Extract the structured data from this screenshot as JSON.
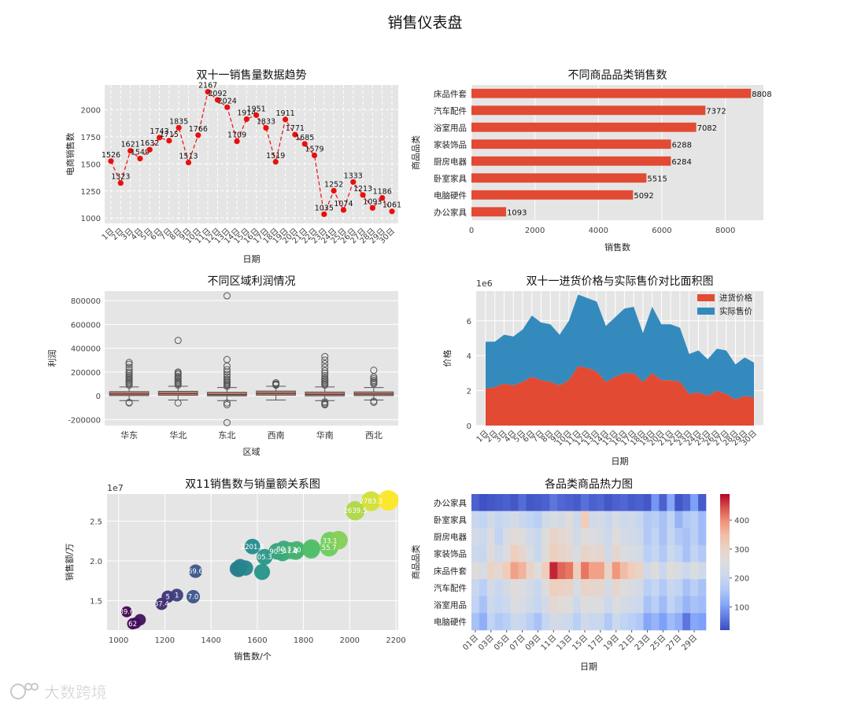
{
  "dashboard": {
    "title": "销售仪表盘",
    "watermark": "大数跨境"
  },
  "colors": {
    "plot_bg": "#e5e5e5",
    "grid": "#ffffff",
    "red": "#e24a33",
    "blue": "#348abd",
    "line_dot": "#e8100c"
  },
  "chart_data": [
    {
      "id": "trend",
      "type": "line",
      "title": "双十一销售量数据趋势",
      "xlabel": "日期",
      "ylabel": "电商销售数",
      "x": [
        "1日",
        "2日",
        "3日",
        "4日",
        "5日",
        "6日",
        "7日",
        "8日",
        "9日",
        "10日",
        "11日",
        "12日",
        "13日",
        "14日",
        "15日",
        "16日",
        "17日",
        "18日",
        "19日",
        "20日",
        "21日",
        "22日",
        "23日",
        "24日",
        "25日",
        "26日",
        "27日",
        "28日",
        "29日",
        "30日"
      ],
      "values": [
        1526,
        1323,
        1621,
        1549,
        1632,
        1743,
        1715,
        1835,
        1513,
        1766,
        2167,
        2092,
        2024,
        1709,
        1914,
        1951,
        1833,
        1519,
        1911,
        1771,
        1685,
        1579,
        1035,
        1252,
        1074,
        1333,
        1213,
        1093,
        1186,
        1061
      ],
      "yticks": [
        1000,
        1250,
        1500,
        1750,
        2000
      ],
      "ylim": [
        950,
        2230
      ],
      "grid": true,
      "data_labels": true
    },
    {
      "id": "category-bars",
      "type": "bar",
      "orientation": "horizontal",
      "title": "不同商品品类销售数",
      "xlabel": "销售数",
      "ylabel": "商品品类",
      "categories": [
        "床品件套",
        "汽车配件",
        "浴室用品",
        "家装饰品",
        "厨房电器",
        "卧室家具",
        "电脑硬件",
        "办公家具"
      ],
      "values": [
        8808,
        7372,
        7082,
        6288,
        6284,
        5515,
        5092,
        1093
      ],
      "xticks": [
        0,
        2000,
        4000,
        6000,
        8000
      ],
      "xlim": [
        0,
        9200
      ],
      "grid": true,
      "data_labels": true
    },
    {
      "id": "region-box",
      "type": "box",
      "title": "不同区域利润情况",
      "xlabel": "区域",
      "ylabel": "利润",
      "categories": [
        "华东",
        "华北",
        "东北",
        "西南",
        "华南",
        "西北"
      ],
      "boxes": [
        {
          "q1": 2000,
          "median": 15000,
          "q3": 35000,
          "whisker_low": -40000,
          "whisker_high": 75000,
          "outliers": [
            280000,
            265000,
            240000,
            220000,
            200000,
            185000,
            170000,
            160000,
            150000,
            140000,
            130000,
            120000,
            110000,
            100000,
            90000,
            -55000,
            -60000
          ]
        },
        {
          "q1": 4000,
          "median": 18000,
          "q3": 38000,
          "whisker_low": -35000,
          "whisker_high": 80000,
          "outliers": [
            465000,
            200000,
            190000,
            180000,
            165000,
            155000,
            145000,
            130000,
            120000,
            110000,
            100000,
            90000,
            -60000
          ]
        },
        {
          "q1": 0,
          "median": 10000,
          "q3": 30000,
          "whisker_low": -40000,
          "whisker_high": 70000,
          "outliers": [
            840000,
            305000,
            250000,
            220000,
            200000,
            180000,
            160000,
            140000,
            130000,
            120000,
            110000,
            100000,
            90000,
            80000,
            -60000,
            -75000,
            -225000
          ]
        },
        {
          "q1": 5000,
          "median": 20000,
          "q3": 40000,
          "whisker_low": -35000,
          "whisker_high": 80000,
          "outliers": [
            110000,
            100000,
            95000,
            90000
          ]
        },
        {
          "q1": 0,
          "median": 12000,
          "q3": 32000,
          "whisker_low": -40000,
          "whisker_high": 75000,
          "outliers": [
            330000,
            300000,
            270000,
            240000,
            210000,
            190000,
            170000,
            150000,
            140000,
            130000,
            120000,
            110000,
            100000,
            90000,
            -50000,
            -60000,
            -70000,
            -75000
          ]
        },
        {
          "q1": 2000,
          "median": 15000,
          "q3": 33000,
          "whisker_low": -35000,
          "whisker_high": 70000,
          "outliers": [
            215000,
            160000,
            145000,
            130000,
            120000,
            110000,
            100000,
            -45000,
            -55000
          ]
        }
      ],
      "yticks": [
        -200000,
        0,
        200000,
        400000,
        600000,
        800000
      ],
      "ylim": [
        -250000,
        880000
      ],
      "grid": true
    },
    {
      "id": "price-area",
      "type": "area",
      "title": "双十一进货价格与实际售价对比面积图",
      "xlabel": "日期",
      "ylabel": "价格",
      "scale_label": "1e6",
      "x": [
        "1日",
        "2日",
        "3日",
        "4日",
        "5日",
        "6日",
        "7日",
        "8日",
        "9日",
        "10日",
        "11日",
        "12日",
        "13日",
        "14日",
        "15日",
        "16日",
        "17日",
        "18日",
        "19日",
        "20日",
        "21日",
        "22日",
        "23日",
        "24日",
        "25日",
        "26日",
        "27日",
        "28日",
        "29日",
        "30日"
      ],
      "series": [
        {
          "name": "进货价格",
          "values": [
            2.1,
            2.2,
            2.4,
            2.3,
            2.5,
            2.8,
            2.6,
            2.5,
            2.3,
            2.6,
            3.4,
            3.3,
            3.1,
            2.5,
            2.8,
            3.0,
            3.0,
            2.5,
            3.0,
            2.6,
            2.6,
            2.5,
            1.8,
            1.9,
            1.7,
            2.0,
            1.8,
            1.5,
            1.7,
            1.6
          ]
        },
        {
          "name": "实际售价",
          "values": [
            2.7,
            2.6,
            2.8,
            2.8,
            3.0,
            3.5,
            3.3,
            3.3,
            2.9,
            3.4,
            4.1,
            4.0,
            4.0,
            3.2,
            3.4,
            3.7,
            3.8,
            2.8,
            3.8,
            3.2,
            3.2,
            3.1,
            2.3,
            2.4,
            2.1,
            2.4,
            2.5,
            2.0,
            2.2,
            2.0
          ]
        }
      ],
      "yticks": [
        0,
        2,
        4,
        6
      ],
      "ylim": [
        0,
        7.7
      ],
      "legend": "top-right",
      "grid": true
    },
    {
      "id": "sales-bubble",
      "type": "scatter",
      "title": "双11销售数与销量额关系图",
      "xlabel": "销售数/个",
      "ylabel": "销售额/万",
      "scale_label": "1e7",
      "points": [
        {
          "x": 1526,
          "y": 1.93,
          "label": ""
        },
        {
          "x": 1323,
          "y": 1.55,
          "label": "7.0"
        },
        {
          "x": 1621,
          "y": 1.86,
          "label": ""
        },
        {
          "x": 1549,
          "y": 1.91,
          "label": ""
        },
        {
          "x": 1632,
          "y": 2.05,
          "label": "05.3"
        },
        {
          "x": 1743,
          "y": 2.13,
          "label": "11.9"
        },
        {
          "x": 1715,
          "y": 2.15,
          "label": "80.3"
        },
        {
          "x": 1835,
          "y": 2.16,
          "label": ""
        },
        {
          "x": 1513,
          "y": 1.9,
          "label": ""
        },
        {
          "x": 1766,
          "y": 2.12,
          "label": "4"
        },
        {
          "x": 2167,
          "y": 2.76,
          "label": ""
        },
        {
          "x": 2092,
          "y": 2.75,
          "label": "2783.3"
        },
        {
          "x": 2024,
          "y": 2.63,
          "label": "2639.5"
        },
        {
          "x": 1709,
          "y": 2.1,
          "label": ""
        },
        {
          "x": 1914,
          "y": 2.25,
          "label": "33.1"
        },
        {
          "x": 1951,
          "y": 2.26,
          "label": ""
        },
        {
          "x": 1833,
          "y": 2.14,
          "label": ""
        },
        {
          "x": 1519,
          "y": 1.89,
          "label": ""
        },
        {
          "x": 1911,
          "y": 2.17,
          "label": "55.7"
        },
        {
          "x": 1771,
          "y": 2.14,
          "label": "20"
        },
        {
          "x": 1685,
          "y": 2.12,
          "label": "90.5"
        },
        {
          "x": 1579,
          "y": 2.18,
          "label": "2201.8"
        },
        {
          "x": 1035,
          "y": 1.36,
          "label": "39.6"
        },
        {
          "x": 1252,
          "y": 1.57,
          "label": "1"
        },
        {
          "x": 1074,
          "y": 1.22,
          "label": ""
        },
        {
          "x": 1333,
          "y": 1.87,
          "label": "69.6"
        },
        {
          "x": 1213,
          "y": 1.55,
          "label": "5"
        },
        {
          "x": 1093,
          "y": 1.26,
          "label": ""
        },
        {
          "x": 1186,
          "y": 1.46,
          "label": "37.4"
        },
        {
          "x": 1061,
          "y": 1.21,
          "label": "62"
        }
      ],
      "xticks": [
        1000,
        1200,
        1400,
        1600,
        1800,
        2000,
        2200
      ],
      "xlim": [
        950,
        2210
      ],
      "yticks": [
        1.5,
        2.0,
        2.5
      ],
      "ylim": [
        1.13,
        2.84
      ],
      "grid": true
    },
    {
      "id": "category-heatmap",
      "type": "heatmap",
      "title": "各品类商品热力图",
      "xlabel": "日期",
      "ylabel": "商品品类",
      "rows": [
        "办公家具",
        "卧室家具",
        "厨房电器",
        "家装饰品",
        "床品件套",
        "汽车配件",
        "浴室用品",
        "电脑硬件"
      ],
      "x": [
        "01日",
        "02日",
        "03日",
        "04日",
        "05日",
        "06日",
        "07日",
        "08日",
        "09日",
        "10日",
        "11日",
        "12日",
        "13日",
        "14日",
        "15日",
        "16日",
        "17日",
        "18日",
        "19日",
        "20日",
        "21日",
        "22日",
        "23日",
        "24日",
        "25日",
        "26日",
        "27日",
        "28日",
        "29日",
        "30日"
      ],
      "xtick_labels": [
        "01日",
        "03日",
        "05日",
        "07日",
        "09日",
        "11日",
        "13日",
        "15日",
        "17日",
        "19日",
        "21日",
        "23日",
        "25日",
        "27日",
        "29日"
      ],
      "values": [
        [
          40,
          25,
          30,
          35,
          40,
          30,
          50,
          30,
          35,
          40,
          60,
          45,
          40,
          35,
          55,
          40,
          45,
          30,
          40,
          45,
          35,
          40,
          30,
          90,
          40,
          110,
          30,
          45,
          100,
          35
        ],
        [
          200,
          180,
          220,
          190,
          210,
          230,
          200,
          180,
          170,
          220,
          240,
          230,
          260,
          210,
          330,
          220,
          230,
          200,
          240,
          210,
          220,
          190,
          160,
          170,
          150,
          180,
          130,
          160,
          170,
          140
        ],
        [
          230,
          210,
          250,
          180,
          240,
          270,
          260,
          220,
          200,
          260,
          300,
          280,
          270,
          220,
          260,
          250,
          240,
          210,
          260,
          230,
          220,
          210,
          160,
          180,
          150,
          190,
          160,
          150,
          170,
          140
        ],
        [
          210,
          200,
          260,
          220,
          250,
          320,
          290,
          240,
          200,
          260,
          320,
          300,
          280,
          240,
          300,
          280,
          290,
          220,
          290,
          250,
          240,
          230,
          170,
          190,
          160,
          210,
          180,
          150,
          180,
          160
        ],
        [
          260,
          240,
          300,
          280,
          330,
          380,
          360,
          300,
          260,
          330,
          470,
          430,
          420,
          320,
          420,
          380,
          380,
          300,
          390,
          350,
          330,
          300,
          220,
          260,
          200,
          260,
          240,
          210,
          250,
          220
        ],
        [
          200,
          170,
          230,
          200,
          230,
          270,
          250,
          230,
          200,
          260,
          320,
          310,
          300,
          240,
          300,
          290,
          290,
          230,
          290,
          260,
          240,
          230,
          170,
          190,
          160,
          200,
          180,
          150,
          170,
          150
        ],
        [
          180,
          150,
          210,
          190,
          210,
          250,
          240,
          220,
          190,
          230,
          280,
          270,
          260,
          210,
          260,
          250,
          250,
          210,
          250,
          230,
          220,
          210,
          150,
          170,
          140,
          180,
          160,
          130,
          150,
          140
        ],
        [
          150,
          120,
          180,
          160,
          170,
          210,
          200,
          170,
          150,
          190,
          230,
          220,
          210,
          170,
          220,
          200,
          200,
          160,
          210,
          180,
          170,
          160,
          110,
          130,
          100,
          140,
          120,
          60,
          110,
          100
        ]
      ],
      "vmin": 20,
      "vmax": 490,
      "colorbar_ticks": [
        100,
        200,
        300,
        400
      ],
      "colormap": "coolwarm"
    }
  ]
}
